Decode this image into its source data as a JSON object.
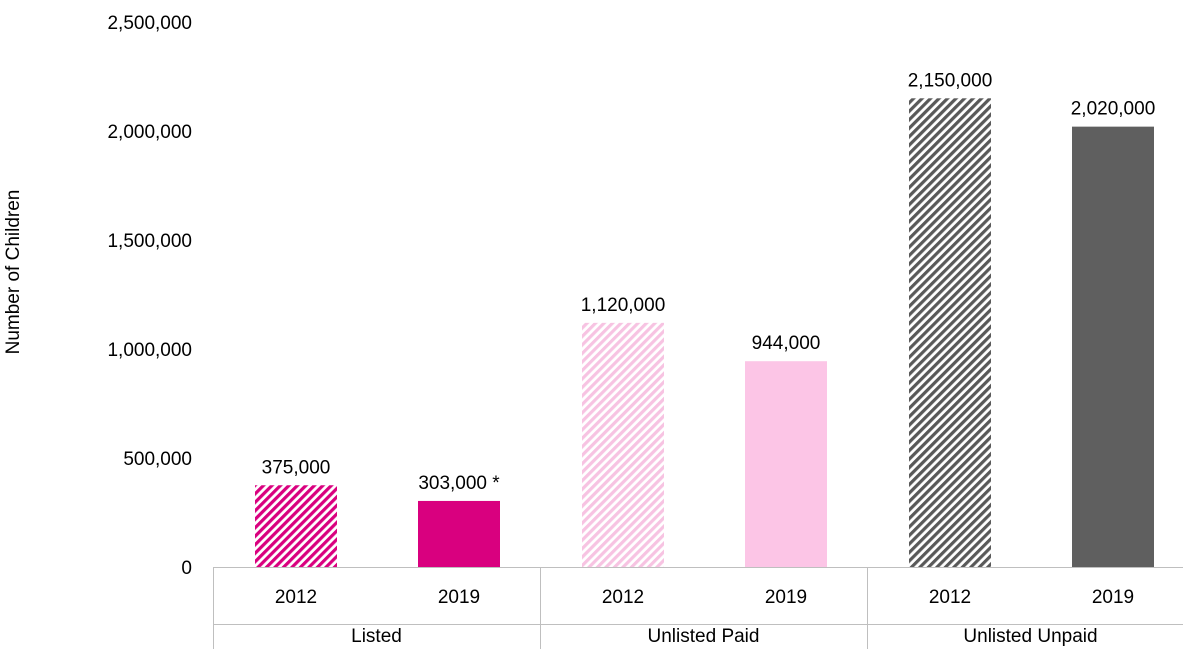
{
  "chart_data": {
    "type": "bar",
    "title": "",
    "xlabel": "",
    "ylabel": "Number of Children",
    "ylim": [
      0,
      2500000
    ],
    "yticks": [
      0,
      500000,
      1000000,
      1500000,
      2000000,
      2500000
    ],
    "ytick_labels": [
      "0",
      "500,000",
      "1,000,000",
      "1,500,000",
      "2,000,000",
      "2,500,000"
    ],
    "grid": false,
    "legend": "none",
    "groups": [
      {
        "name": "Listed",
        "bars": [
          {
            "year": "2012",
            "value": 375000,
            "label": "375,000",
            "color": "#d9007f",
            "style": "hatched"
          },
          {
            "year": "2019",
            "value": 303000,
            "label": "303,000 *",
            "color": "#d9007f",
            "style": "solid"
          }
        ]
      },
      {
        "name": "Unlisted Paid",
        "bars": [
          {
            "year": "2012",
            "value": 1120000,
            "label": "1,120,000",
            "color": "#f7c3e2",
            "style": "hatched"
          },
          {
            "year": "2019",
            "value": 944000,
            "label": "944,000",
            "color": "#fcc5e6",
            "style": "solid"
          }
        ]
      },
      {
        "name": "Unlisted Unpaid",
        "bars": [
          {
            "year": "2012",
            "value": 2150000,
            "label": "2,150,000",
            "color": "#595959",
            "style": "hatched"
          },
          {
            "year": "2019",
            "value": 2020000,
            "label": "2,020,000",
            "color": "#5f5f5f",
            "style": "solid"
          }
        ]
      }
    ]
  }
}
